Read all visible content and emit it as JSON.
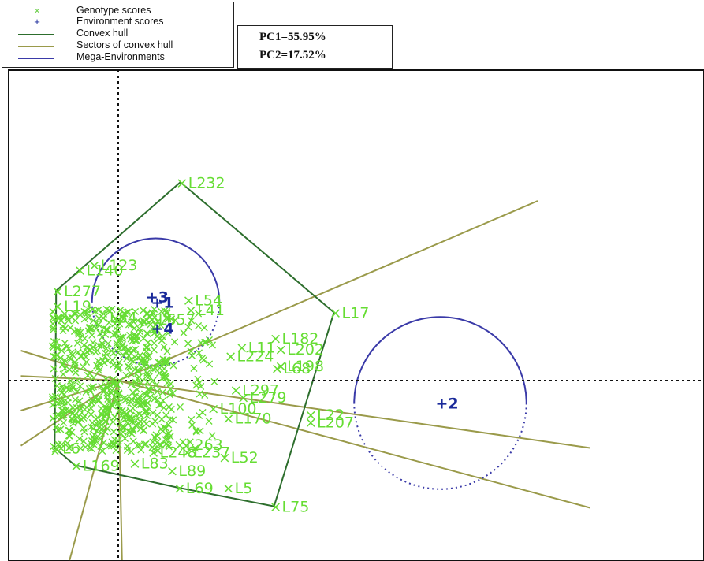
{
  "legend": {
    "items": [
      {
        "label": "Genotype scores",
        "symbol": "×",
        "color": "#66cc44"
      },
      {
        "label": "Environment scores",
        "symbol": "+",
        "color": "#1a2a9a"
      },
      {
        "label": "Convex hull",
        "color": "#2d6e2d"
      },
      {
        "label": "Sectors of convex hull",
        "color": "#9a9a4a"
      },
      {
        "label": "Mega-Environments",
        "color": "#3a3aa8"
      }
    ]
  },
  "variance": {
    "pc1": "PC1=55.95%",
    "pc2": "PC2=17.52%"
  },
  "chart_data": {
    "type": "scatter",
    "title": "",
    "xlabel": "",
    "ylabel": "",
    "xlim": [
      -13,
      63
    ],
    "ylim": [
      -24,
      33
    ],
    "origin": [
      0,
      0
    ],
    "grid": false,
    "legend_position": "top-left",
    "colors": {
      "genotype": "#66dd33",
      "environment": "#1a2a9a",
      "hull": "#2d6e2d",
      "sector": "#9a9a4a",
      "mega": "#3a3aa8",
      "axis": "#111111"
    },
    "environments": [
      {
        "label": "1",
        "x": 5.0,
        "y": 10.5
      },
      {
        "label": "2",
        "x": 43.0,
        "y": -3.0
      },
      {
        "label": "3",
        "x": 4.3,
        "y": 11.2
      },
      {
        "label": "4",
        "x": 5.0,
        "y": 7.0
      }
    ],
    "genotypes": [
      {
        "label": "L232",
        "x": 8.3,
        "y": 26.5
      },
      {
        "label": "L123",
        "x": -3.4,
        "y": 15.5
      },
      {
        "label": "L140",
        "x": -5.3,
        "y": 14.8
      },
      {
        "label": "L277",
        "x": -8.3,
        "y": 12.0
      },
      {
        "label": "L19",
        "x": -8.3,
        "y": 10.0
      },
      {
        "label": "L54",
        "x": 9.2,
        "y": 10.8
      },
      {
        "label": "L41",
        "x": 9.5,
        "y": 9.5
      },
      {
        "label": "L17",
        "x": 28.8,
        "y": 9.1
      },
      {
        "label": "L84",
        "x": -2.2,
        "y": 8.5
      },
      {
        "label": "L657",
        "x": 4.3,
        "y": 8.2
      },
      {
        "label": "L182",
        "x": 20.8,
        "y": 5.7
      },
      {
        "label": "L202",
        "x": 21.5,
        "y": 4.2
      },
      {
        "label": "L11",
        "x": 16.3,
        "y": 4.5
      },
      {
        "label": "L224",
        "x": 14.8,
        "y": 3.3
      },
      {
        "label": "L198",
        "x": 21.5,
        "y": 2.0
      },
      {
        "label": "L68",
        "x": 21.0,
        "y": 1.7
      },
      {
        "label": "L297",
        "x": 15.5,
        "y": -1.2
      },
      {
        "label": "L279",
        "x": 16.5,
        "y": -2.2
      },
      {
        "label": "L100",
        "x": 12.5,
        "y": -3.7
      },
      {
        "label": "L170",
        "x": 14.5,
        "y": -5.0
      },
      {
        "label": "L207",
        "x": 25.5,
        "y": -5.5
      },
      {
        "label": "L22",
        "x": 25.5,
        "y": -4.5
      },
      {
        "label": "L263",
        "x": 8.0,
        "y": -8.5
      },
      {
        "label": "L52",
        "x": 14.0,
        "y": -10.2
      },
      {
        "label": "L237",
        "x": 9.0,
        "y": -9.5
      },
      {
        "label": "L248",
        "x": 4.5,
        "y": -9.5
      },
      {
        "label": "L83",
        "x": 2.0,
        "y": -11.0
      },
      {
        "label": "L89",
        "x": 7.0,
        "y": -12.0
      },
      {
        "label": "L69",
        "x": 8.0,
        "y": -14.3
      },
      {
        "label": "L5",
        "x": 14.5,
        "y": -14.3
      },
      {
        "label": "L75",
        "x": 20.8,
        "y": -16.8
      },
      {
        "label": "L169",
        "x": -5.8,
        "y": -11.3
      },
      {
        "label": "L6",
        "x": -8.5,
        "y": -9.0
      }
    ],
    "convex_hull": [
      "L232",
      "L17",
      "L75",
      "L69",
      "L169",
      "L6",
      "L19",
      "L277"
    ],
    "sector_rays": [
      [
        56,
        24
      ],
      [
        63,
        -9
      ],
      [
        63,
        -17
      ],
      [
        -13,
        4
      ],
      [
        -13,
        0.6
      ],
      [
        -13,
        -4
      ],
      [
        -13,
        -8.7
      ],
      [
        -6.5,
        -24
      ],
      [
        0.5,
        -24
      ]
    ],
    "mega_environments": [
      {
        "center": [
          5.0,
          10.5
        ],
        "radius": 8.5
      },
      {
        "center": [
          43.0,
          -3.0
        ],
        "radius": 11.5
      }
    ]
  }
}
